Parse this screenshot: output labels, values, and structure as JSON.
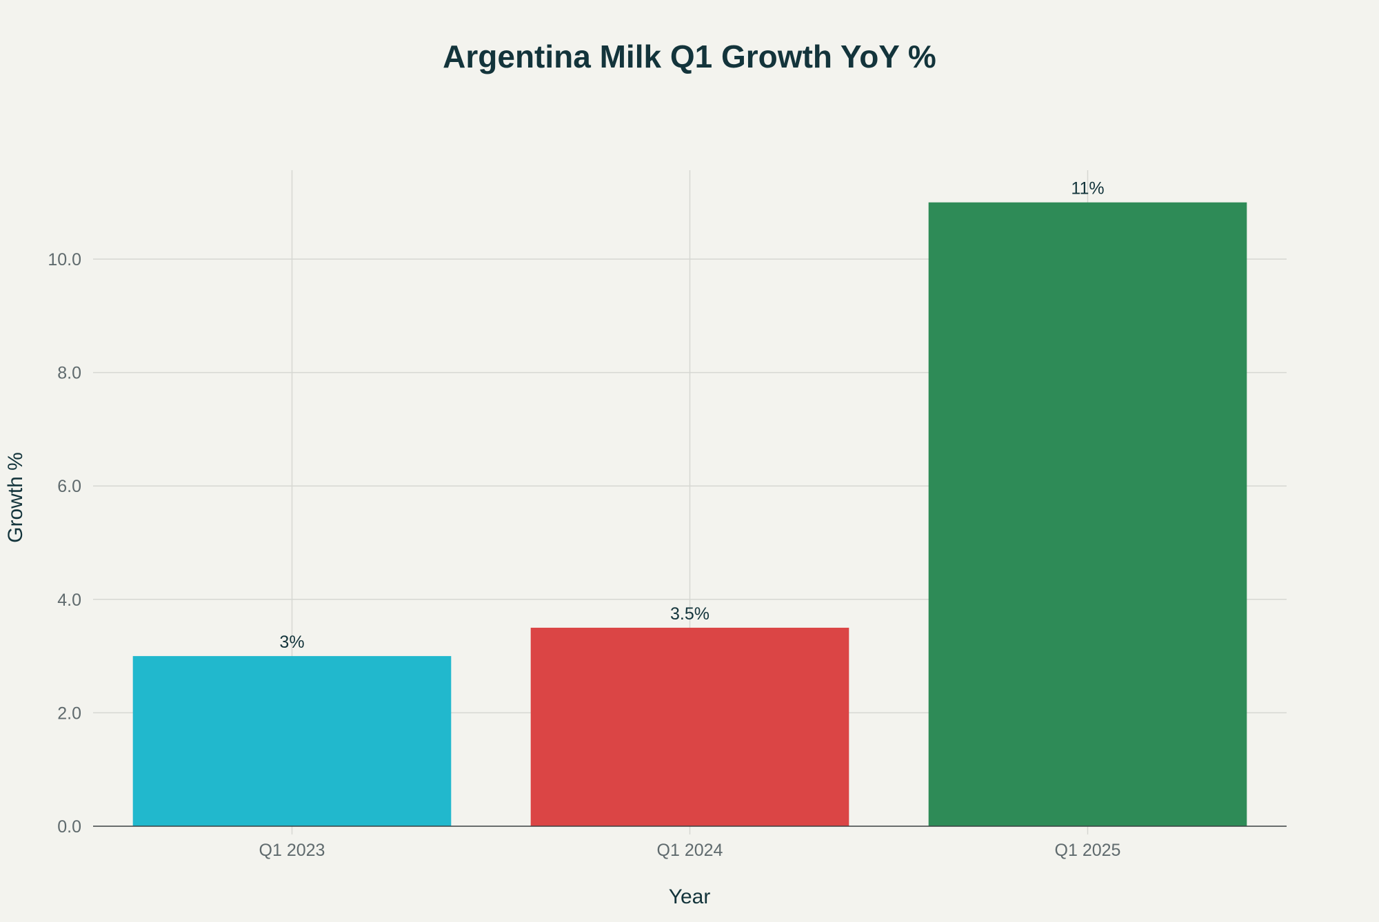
{
  "chart_data": {
    "type": "bar",
    "title": "Argentina Milk Q1 Growth YoY %",
    "xlabel": "Year",
    "ylabel": "Growth %",
    "categories": [
      "Q1 2023",
      "Q1 2024",
      "Q1 2025"
    ],
    "values": [
      3,
      3.5,
      11
    ],
    "data_labels": [
      "3%",
      "3.5%",
      "11%"
    ],
    "colors": [
      "#21b8cd",
      "#db4545",
      "#2e8b57"
    ],
    "ylim": [
      0,
      11.6
    ],
    "yticks": [
      0,
      2,
      4,
      6,
      8,
      10
    ],
    "ytick_labels": [
      "0.0",
      "2.0",
      "4.0",
      "6.0",
      "8.0",
      "10.0"
    ],
    "grid": true,
    "legend": "none"
  }
}
